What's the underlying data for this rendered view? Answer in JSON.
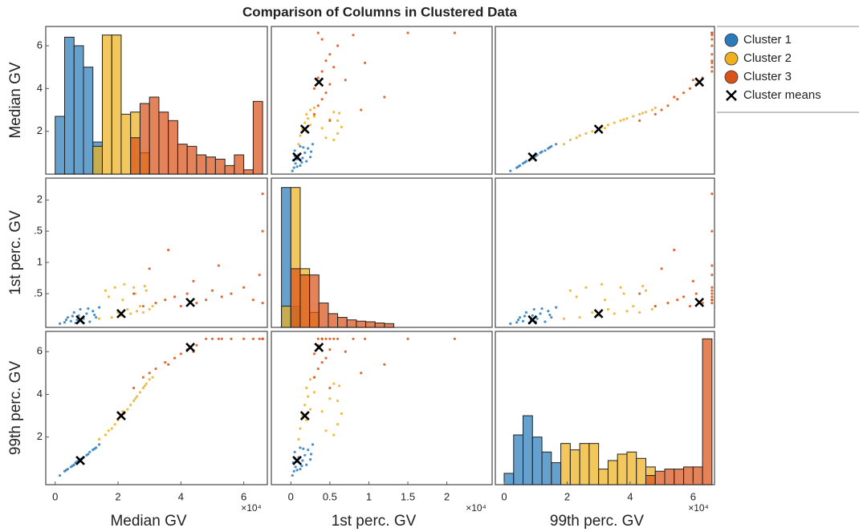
{
  "chart_data": {
    "type": "scatter-matrix",
    "title": "Comparison of Columns in Clustered Data",
    "variables": [
      "Median GV",
      "1st perc. GV",
      "99th perc. GV"
    ],
    "exponent_label": "×10⁴",
    "xlims": [
      [
        -0.3,
        6.75
      ],
      [
        -0.25,
        2.58
      ],
      [
        -0.28,
        6.68
      ]
    ],
    "ylims": [
      [
        0,
        6.9
      ],
      [
        -0.04,
        2.35
      ],
      [
        -0.23,
        6.95
      ]
    ],
    "xticks": [
      [
        0,
        2,
        4,
        6
      ],
      [
        0,
        0.5,
        1,
        1.5,
        2
      ],
      [
        0,
        2,
        4,
        6
      ]
    ],
    "yticks": [
      [
        2,
        4,
        6
      ],
      [
        {
          "value": 0.5,
          "label": ".5"
        },
        1,
        {
          "value": 1.5,
          "label": ".5"
        },
        2
      ],
      [
        2,
        4,
        6
      ]
    ],
    "grid": false,
    "legend": "outside right",
    "series": [
      {
        "name": "Cluster 1",
        "color": "#2b7bba",
        "marker": "o",
        "values": [
          [
            0.15,
            0.3,
            0.4,
            0.5,
            0.6,
            0.7,
            0.75,
            0.8,
            0.9,
            1.0,
            1.1,
            1.2,
            1.3,
            1.4,
            0.55,
            0.85,
            1.05,
            0.35,
            0.65,
            1.25
          ],
          [
            0.02,
            0.04,
            0.12,
            0.06,
            0.2,
            0.08,
            0.15,
            0.25,
            0.1,
            0.18,
            0.05,
            0.22,
            0.12,
            0.28,
            0.14,
            0.05,
            0.26,
            0.08,
            0.03,
            0.16
          ],
          [
            0.2,
            0.4,
            0.5,
            0.6,
            0.7,
            0.85,
            0.9,
            0.95,
            1.05,
            1.15,
            1.3,
            1.4,
            1.5,
            1.65,
            0.65,
            1.0,
            1.2,
            0.45,
            0.8,
            1.45
          ]
        ]
      },
      {
        "name": "Cluster 2",
        "color": "#edb120",
        "marker": "o",
        "values": [
          [
            1.4,
            1.6,
            1.8,
            1.9,
            2.0,
            2.1,
            2.2,
            2.3,
            2.4,
            2.5,
            2.6,
            2.7,
            2.8,
            2.9,
            3.0,
            3.1,
            1.7,
            2.15,
            2.55,
            2.85
          ],
          [
            0.1,
            0.55,
            0.12,
            0.6,
            0.2,
            0.15,
            0.65,
            0.25,
            0.18,
            0.6,
            0.22,
            0.3,
            0.2,
            0.55,
            0.25,
            0.3,
            0.45,
            0.4,
            0.5,
            0.62
          ],
          [
            1.9,
            2.1,
            2.4,
            2.6,
            2.8,
            3.0,
            3.1,
            3.3,
            3.5,
            3.7,
            3.9,
            4.1,
            4.3,
            4.5,
            4.7,
            4.8,
            2.3,
            3.2,
            3.8,
            4.4
          ]
        ]
      },
      {
        "name": "Cluster 3",
        "color": "#d95319",
        "marker": "o",
        "values": [
          [
            2.5,
            2.8,
            3.0,
            3.2,
            3.5,
            3.8,
            4.0,
            4.2,
            4.5,
            4.8,
            5.0,
            5.3,
            5.6,
            6.0,
            6.3,
            6.5,
            6.6,
            6.6,
            6.6,
            3.6,
            4.4,
            5.2
          ],
          [
            0.5,
            0.3,
            0.9,
            0.35,
            0.4,
            0.45,
            0.3,
            0.5,
            0.35,
            0.4,
            0.55,
            0.45,
            0.5,
            0.6,
            0.4,
            0.8,
            1.5,
            2.1,
            0.35,
            1.2,
            0.7,
            0.95
          ],
          [
            4.3,
            4.8,
            5.0,
            5.2,
            5.5,
            5.7,
            5.9,
            6.1,
            6.3,
            6.6,
            6.6,
            6.6,
            6.6,
            6.6,
            6.6,
            6.6,
            6.6,
            6.6,
            6.6,
            5.4,
            6.0,
            6.6
          ]
        ]
      },
      {
        "name": "Cluster means",
        "color": "#000000",
        "marker": "x",
        "values": [
          [
            0.8,
            2.1,
            4.3
          ],
          [
            0.08,
            0.18,
            0.36
          ],
          [
            0.9,
            3.0,
            6.2
          ]
        ]
      }
    ],
    "histograms": [
      [
        {
          "bins": [
            0,
            0.3,
            0.6,
            0.9,
            1.2,
            1.5
          ],
          "values": [
            2.7,
            6.4,
            6.0,
            5.0,
            1.5
          ]
        },
        {
          "bins": [
            1.2,
            1.5,
            1.8,
            2.1,
            2.4,
            2.7,
            3.0
          ],
          "values": [
            1.3,
            6.5,
            6.5,
            2.8,
            2.9,
            1.0
          ]
        },
        {
          "bins": [
            2.4,
            2.7,
            3.0,
            3.3,
            3.6,
            3.9,
            4.2,
            4.5,
            4.8,
            5.1,
            5.4,
            5.7,
            6.0,
            6.3,
            6.6
          ],
          "values": [
            1.7,
            3.3,
            3.6,
            2.9,
            2.5,
            1.4,
            1.3,
            0.9,
            0.8,
            0.7,
            0.4,
            0.9,
            0.2,
            3.4
          ]
        }
      ],
      [
        {
          "bins": [
            -0.12,
            0,
            0.12
          ],
          "values": [
            2.2,
            0.3
          ]
        },
        {
          "bins": [
            -0.12,
            0,
            0.12,
            0.24,
            0.36
          ],
          "values": [
            0.3,
            2.2,
            0.9,
            0.2
          ]
        },
        {
          "bins": [
            0,
            0.12,
            0.24,
            0.36,
            0.48,
            0.6,
            0.72,
            0.84,
            0.96,
            1.08,
            1.2,
            1.32
          ],
          "values": [
            0.9,
            0.8,
            0.8,
            0.35,
            0.18,
            0.12,
            0.08,
            0.06,
            0.05,
            0.03,
            0.02
          ]
        }
      ],
      [
        {
          "bins": [
            0,
            0.3,
            0.6,
            0.9,
            1.2,
            1.5,
            1.8
          ],
          "values": [
            0.3,
            2.1,
            3.0,
            2.0,
            1.3,
            0.8
          ]
        },
        {
          "bins": [
            1.8,
            2.1,
            2.4,
            2.7,
            3.0,
            3.3,
            3.6,
            3.9,
            4.2,
            4.5,
            4.8
          ],
          "values": [
            1.7,
            1.4,
            1.7,
            1.7,
            0.5,
            0.9,
            1.2,
            1.3,
            1.0,
            0.6
          ]
        },
        {
          "bins": [
            4.5,
            4.8,
            5.1,
            5.4,
            5.7,
            6.0,
            6.3,
            6.6
          ],
          "values": [
            0.2,
            0.4,
            0.5,
            0.5,
            0.6,
            0.6,
            6.6
          ]
        }
      ]
    ]
  }
}
